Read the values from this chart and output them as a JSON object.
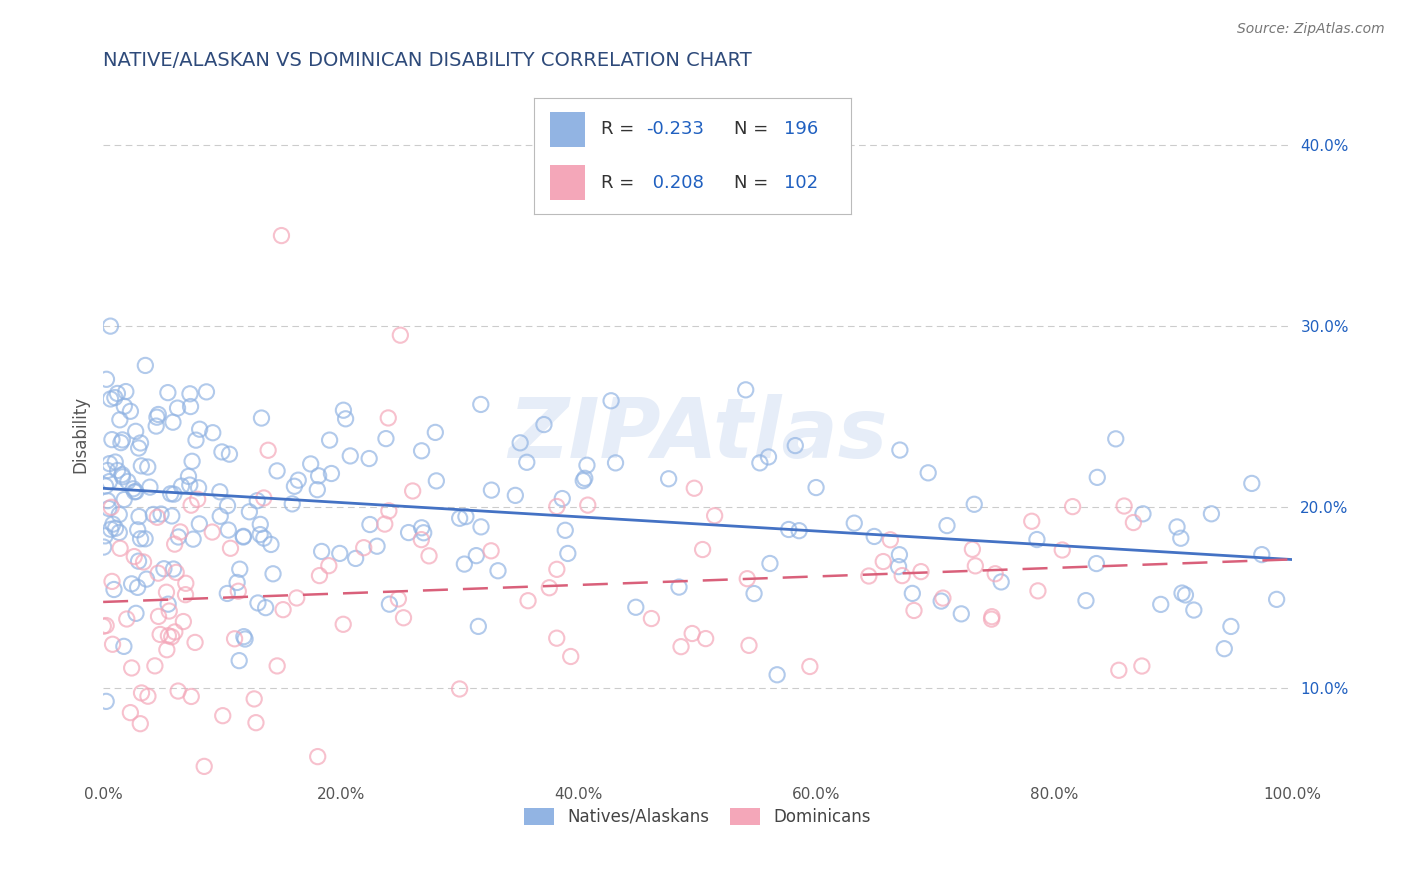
{
  "title": "NATIVE/ALASKAN VS DOMINICAN DISABILITY CORRELATION CHART",
  "source_text": "Source: ZipAtlas.com",
  "watermark": "ZIPAtlas",
  "ylabel": "Disability",
  "xlim": [
    0,
    100
  ],
  "ylim": [
    5,
    43
  ],
  "xtick_labels": [
    "0.0%",
    "20.0%",
    "40.0%",
    "60.0%",
    "80.0%",
    "100.0%"
  ],
  "xtick_vals": [
    0,
    20,
    40,
    60,
    80,
    100
  ],
  "ytick_labels": [
    "10.0%",
    "20.0%",
    "30.0%",
    "40.0%"
  ],
  "ytick_vals": [
    10,
    20,
    30,
    40
  ],
  "blue_color": "#92b4e3",
  "pink_color": "#f4a7b9",
  "blue_line_color": "#4472c4",
  "pink_line_color": "#d9607a",
  "R_blue": -0.233,
  "N_blue": 196,
  "R_pink": 0.208,
  "N_pink": 102,
  "legend_label_blue": "Natives/Alaskans",
  "legend_label_pink": "Dominicans",
  "background_color": "#ffffff",
  "grid_color": "#cccccc",
  "title_color": "#2e4a7a",
  "source_color": "#777777",
  "legend_r_color": "#2060c0",
  "seed_blue": 42,
  "seed_pink": 7
}
